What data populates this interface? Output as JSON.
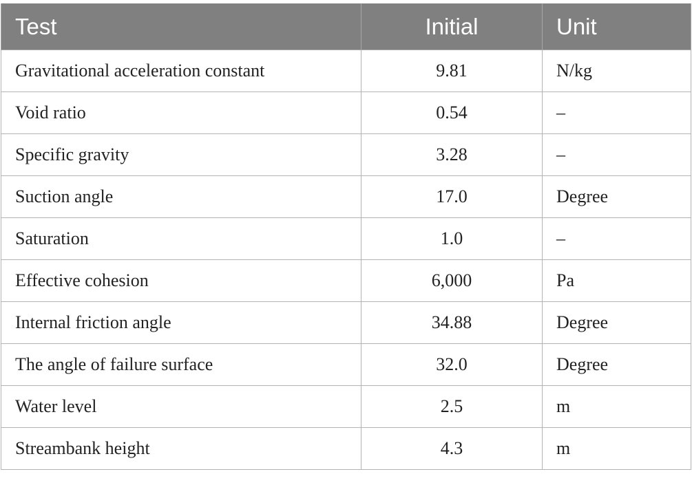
{
  "table": {
    "header": [
      "Test",
      "Initial",
      "Unit"
    ],
    "rows": [
      [
        "Gravitational acceleration constant",
        "9.81",
        "N/kg"
      ],
      [
        "Void ratio",
        "0.54",
        "–"
      ],
      [
        "Specific gravity",
        "3.28",
        "–"
      ],
      [
        "Suction angle",
        "17.0",
        "Degree"
      ],
      [
        "Saturation",
        "1.0",
        "–"
      ],
      [
        "Effective cohesion",
        "6,000",
        "Pa"
      ],
      [
        "Internal friction angle",
        "34.88",
        "Degree"
      ],
      [
        "The angle of failure surface",
        "32.0",
        "Degree"
      ],
      [
        "Water level",
        "2.5",
        "m"
      ],
      [
        "Streambank height",
        "4.3",
        "m"
      ]
    ]
  }
}
